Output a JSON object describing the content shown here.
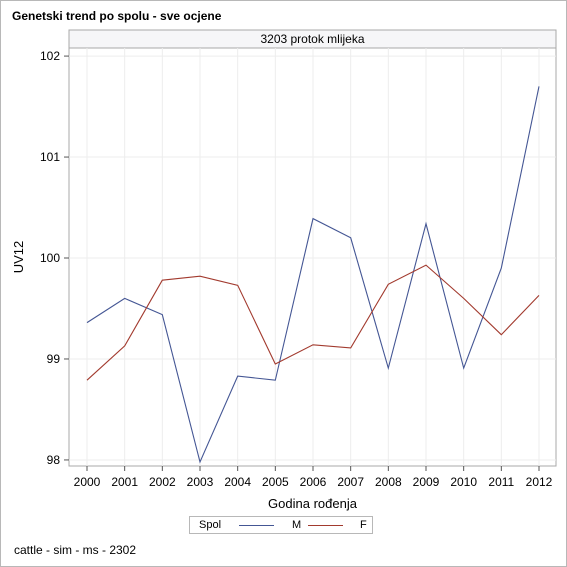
{
  "title": "Genetski trend po spolu - sve ocjene",
  "footnote": "cattle - sim - ms - 2302",
  "legend": {
    "title": "Spol",
    "entries": [
      {
        "name": "M",
        "color": "#445694"
      },
      {
        "name": "F",
        "color": "#a23a2e"
      }
    ]
  },
  "chart_data": {
    "type": "line",
    "panel_title": "3203 protok mlijeka",
    "xlabel": "Godina rođenja",
    "ylabel": "UV12",
    "x": [
      2000,
      2001,
      2002,
      2003,
      2004,
      2005,
      2006,
      2007,
      2008,
      2009,
      2010,
      2011,
      2012
    ],
    "yticks": [
      98,
      99,
      100,
      101,
      102
    ],
    "ylim": [
      97.94,
      102.08
    ],
    "grid": true,
    "series": [
      {
        "name": "M",
        "color": "#445694",
        "values": [
          99.36,
          99.6,
          99.44,
          97.98,
          98.83,
          98.79,
          100.39,
          100.2,
          98.91,
          100.34,
          98.91,
          99.9,
          101.7
        ]
      },
      {
        "name": "F",
        "color": "#a23a2e",
        "values": [
          98.79,
          99.13,
          99.78,
          99.82,
          99.73,
          98.95,
          99.14,
          99.11,
          99.74,
          99.93,
          99.6,
          99.24,
          99.63
        ]
      }
    ]
  }
}
